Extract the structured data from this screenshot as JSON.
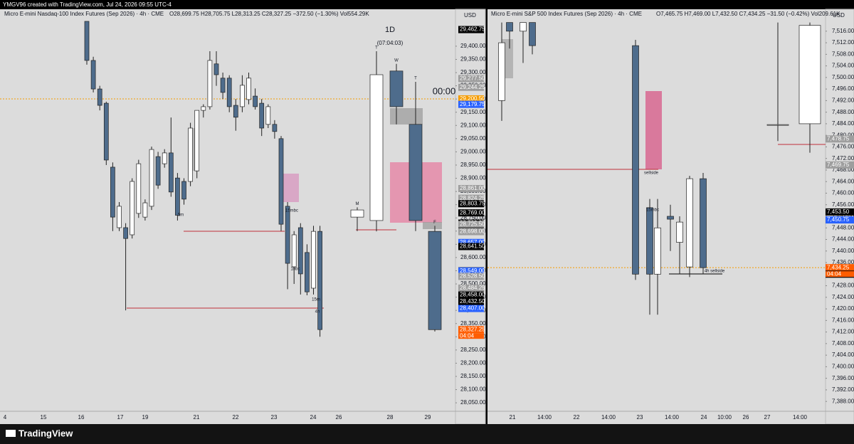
{
  "header": {
    "credit": "YMGV96 created with TradingView.com, Jul 24, 2026 09:55 UTC-4"
  },
  "footer": {
    "brand": "TradingView"
  },
  "chart_data": [
    {
      "type": "candlestick",
      "title": "Micro E-mini Nasdaq-100 Index Futures (Sep 2026) · 4h · CME",
      "ohlc": "O28,699.75 H28,705.75 L28,313.25 C28,327.25 −372.50 (−1.30%) Vol554.29K",
      "currency": "USD",
      "ylim": [
        28018,
        29494
      ],
      "yticks": [
        {
          "value": 28050,
          "label": "28,050.00"
        },
        {
          "value": 28100,
          "label": "28,100.00"
        },
        {
          "value": 28150,
          "label": "28,150.00"
        },
        {
          "value": 28200,
          "label": "28,200.00"
        },
        {
          "value": 28250,
          "label": "28,250.00"
        },
        {
          "value": 28300,
          "label": "28,300.00"
        },
        {
          "value": 28350,
          "label": "28,350.00"
        },
        {
          "value": 28400,
          "label": "28,400.00"
        },
        {
          "value": 28450,
          "label": "28,450.00"
        },
        {
          "value": 28500,
          "label": "28,500.00"
        },
        {
          "value": 28550,
          "label": "28,550.00"
        },
        {
          "value": 28600,
          "label": "28,600.00"
        },
        {
          "value": 28650,
          "label": "28,650.00"
        },
        {
          "value": 28700,
          "label": "28,700.00"
        },
        {
          "value": 28750,
          "label": "28,750.00"
        },
        {
          "value": 28800,
          "label": "28,800.00"
        },
        {
          "value": 28850,
          "label": "28,850.00"
        },
        {
          "value": 28900,
          "label": "28,900.00"
        },
        {
          "value": 28950,
          "label": "28,950.00"
        },
        {
          "value": 29000,
          "label": "29,000.00"
        },
        {
          "value": 29050,
          "label": "29,050.00"
        },
        {
          "value": 29100,
          "label": "29,100.00"
        },
        {
          "value": 29150,
          "label": "29,150.00"
        },
        {
          "value": 29200,
          "label": "29,200.00"
        },
        {
          "value": 29250,
          "label": "29,250.00"
        },
        {
          "value": 29300,
          "label": "29,300.00"
        },
        {
          "value": 29350,
          "label": "29,350.00"
        },
        {
          "value": 29400,
          "label": "29,400.00"
        }
      ],
      "x_labels": [
        "4",
        "15",
        "16",
        "17",
        "19",
        "21",
        "22",
        "23",
        "24",
        "26",
        "28",
        "29"
      ],
      "candles": {
        "open": [
          29494,
          29346,
          29238,
          29184,
          28942,
          28713,
          28713,
          28686,
          28767,
          28753,
          28794,
          28982,
          28955,
          28996,
          28901,
          28888,
          28888,
          28928,
          29157,
          29171,
          29333,
          29279,
          29279,
          29176,
          29171,
          29198,
          29211,
          29184,
          29104,
          29104,
          29050,
          28794,
          28565,
          28713,
          28619,
          28484,
          28699
        ],
        "high": [
          29494,
          29360,
          29250,
          29190,
          28960,
          28810,
          28730,
          28900,
          28970,
          28820,
          29020,
          29000,
          29010,
          29130,
          28920,
          28900,
          29110,
          29157,
          29180,
          29381,
          29381,
          29300,
          29290,
          29200,
          29290,
          29300,
          29240,
          29200,
          29180,
          29120,
          29060,
          28810,
          28700,
          28730,
          28650,
          28720,
          28720
        ],
        "low": [
          29330,
          29225,
          29157,
          28950,
          28700,
          28700,
          28400,
          28672,
          28750,
          28740,
          28780,
          28860,
          28940,
          28830,
          28740,
          28800,
          28870,
          28900,
          29130,
          29160,
          29250,
          29200,
          29150,
          29080,
          29150,
          29180,
          29160,
          29060,
          29090,
          29050,
          28700,
          28480,
          28500,
          28460,
          28457,
          28460,
          28300
        ],
        "close": [
          29346,
          29238,
          29176,
          28969,
          28753,
          28794,
          28672,
          28888,
          28955,
          28807,
          29009,
          28874,
          28996,
          28848,
          28760,
          28821,
          29090,
          29157,
          29171,
          29346,
          29292,
          29225,
          29171,
          29131,
          29252,
          29279,
          29171,
          29090,
          29171,
          29077,
          28726,
          28578,
          28686,
          28538,
          28470,
          28699,
          28327.25
        ]
      },
      "daily": {
        "label": "1D",
        "countdown": "(07:04:03)",
        "clock": "00:00",
        "days": [
          "M",
          "T",
          "W",
          "T",
          "F"
        ],
        "open": [
          28753,
          28740,
          29306,
          29104,
          28699
        ],
        "high": [
          28790,
          29381,
          29333,
          29265,
          28720
        ],
        "low": [
          28700,
          28699,
          29104,
          28700,
          28320
        ],
        "close": [
          28780,
          29292,
          29171,
          28740,
          28327
        ]
      },
      "price_tags": [
        {
          "value": 29463,
          "label": "29,463.00",
          "color": "#000000"
        },
        {
          "value": 29462.75,
          "label": "29,462.75",
          "color": "#000000"
        },
        {
          "value": 29277.5,
          "label": "29,277.50",
          "color": "#9e9e9e"
        },
        {
          "value": 29244.25,
          "label": "29,244.25",
          "color": "#9e9e9e"
        },
        {
          "value": 29200.5,
          "label": "29,200.50",
          "color": "#f59c00"
        },
        {
          "value": 29179.75,
          "label": "29,179.75",
          "color": "#2962ff"
        },
        {
          "value": 28861,
          "label": "28,861.00",
          "color": "#9e9e9e"
        },
        {
          "value": 28824.25,
          "label": "28,824.25",
          "color": "#9e9e9e"
        },
        {
          "value": 28803.75,
          "label": "28,803.75",
          "color": "#000000"
        },
        {
          "value": 28769,
          "label": "28,769.00",
          "color": "#000000"
        },
        {
          "value": 28730.25,
          "label": "28,730.25",
          "color": "#000000"
        },
        {
          "value": 28725.5,
          "label": "28,725.50",
          "color": "#9e9e9e"
        },
        {
          "value": 28700.25,
          "label": "28,700.25",
          "color": "#000000"
        },
        {
          "value": 28698,
          "label": "28,698.00",
          "color": "#9e9e9e"
        },
        {
          "value": 28657,
          "label": "28,657.00",
          "color": "#2962ff"
        },
        {
          "value": 28641.5,
          "label": "28,641.50",
          "color": "#000000"
        },
        {
          "value": 28549.75,
          "label": "28,549.75",
          "color": "#000000"
        },
        {
          "value": 28549,
          "label": "28,549.00",
          "color": "#2962ff"
        },
        {
          "value": 28528.5,
          "label": "28,528.50",
          "color": "#9e9e9e"
        },
        {
          "value": 28484.25,
          "label": "28,484.25",
          "color": "#9e9e9e"
        },
        {
          "value": 28458,
          "label": "28,458.00",
          "color": "#000000"
        },
        {
          "value": 28432.5,
          "label": "28,432.50",
          "color": "#000000"
        },
        {
          "value": 28407,
          "label": "28,407.00",
          "color": "#2962ff"
        },
        {
          "value": 28327.25,
          "label": "28,327.25",
          "color": "#ff5d00"
        }
      ],
      "timer": "04:04",
      "annotations": [
        "15mbc",
        "1hbc",
        "15m",
        "4h",
        "5m"
      ]
    },
    {
      "type": "candlestick",
      "title": "Micro E-mini S&P 500 Index Futures (Sep 2026) · 4h · CME",
      "ohlc": "O7,465.75 H7,469.00 L7,432.50 C7,434.25 −31.50 (−0.42%) Vol209.61K",
      "currency": "USD",
      "ylim": [
        7384.6,
        7519.4
      ],
      "yticks": [
        {
          "value": 7388,
          "label": "7,388.00"
        },
        {
          "value": 7392,
          "label": "7,392.00"
        },
        {
          "value": 7396,
          "label": "7,396.00"
        },
        {
          "value": 7400,
          "label": "7,400.00"
        },
        {
          "value": 7404,
          "label": "7,404.00"
        },
        {
          "value": 7408,
          "label": "7,408.00"
        },
        {
          "value": 7412,
          "label": "7,412.00"
        },
        {
          "value": 7416,
          "label": "7,416.00"
        },
        {
          "value": 7420,
          "label": "7,420.00"
        },
        {
          "value": 7424,
          "label": "7,424.00"
        },
        {
          "value": 7428,
          "label": "7,428.00"
        },
        {
          "value": 7432,
          "label": "7,432.00"
        },
        {
          "value": 7436,
          "label": "7,436.00"
        },
        {
          "value": 7440,
          "label": "7,440.00"
        },
        {
          "value": 7444,
          "label": "7,444.00"
        },
        {
          "value": 7448,
          "label": "7,448.00"
        },
        {
          "value": 7452,
          "label": "7,452.00"
        },
        {
          "value": 7456,
          "label": "7,456.00"
        },
        {
          "value": 7460,
          "label": "7,460.00"
        },
        {
          "value": 7464,
          "label": "7,464.00"
        },
        {
          "value": 7468,
          "label": "7,468.00"
        },
        {
          "value": 7472,
          "label": "7,472.00"
        },
        {
          "value": 7476,
          "label": "7,476.00"
        },
        {
          "value": 7480,
          "label": "7,480.00"
        },
        {
          "value": 7484,
          "label": "7,484.00"
        },
        {
          "value": 7488,
          "label": "7,488.00"
        },
        {
          "value": 7492,
          "label": "7,492.00"
        },
        {
          "value": 7496,
          "label": "7,496.00"
        },
        {
          "value": 7500,
          "label": "7,500.00"
        },
        {
          "value": 7504,
          "label": "7,504.00"
        },
        {
          "value": 7508,
          "label": "7,508.00"
        },
        {
          "value": 7512,
          "label": "7,512.00"
        },
        {
          "value": 7516,
          "label": "7,516.00"
        }
      ],
      "x_labels": [
        "21",
        "14:00",
        "22",
        "14:00",
        "23",
        "14:00",
        "24",
        "10:00",
        "26",
        "27",
        "14:00"
      ],
      "candles": {
        "open": [
          7492,
          7519,
          7516,
          7519,
          7511,
          7455,
          7432,
          7452,
          7443,
          7434.5,
          7465
        ],
        "high": [
          7519,
          7519,
          7519,
          7519,
          7513,
          7458,
          7458,
          7456,
          7452,
          7466,
          7467
        ],
        "low": [
          7485,
          7510,
          7505,
          7508,
          7430,
          7418,
          7418,
          7440,
          7432,
          7431,
          7432
        ],
        "close": [
          7512,
          7516,
          7519,
          7511,
          7432,
          7432,
          7448,
          7451,
          7450,
          7465,
          7434.25
        ]
      },
      "daily": {
        "open": [
          7483.7,
          7484
        ],
        "high": [
          7519,
          7519
        ],
        "low": [
          7478,
          7474
        ],
        "close": [
          7483.7,
          7518
        ]
      },
      "price_tags": [
        {
          "value": 7478.75,
          "label": "7,478.75",
          "color": "#9e9e9e"
        },
        {
          "value": 7469.75,
          "label": "7,469.75",
          "color": "#9e9e9e"
        },
        {
          "value": 7453.5,
          "label": "7,453.50",
          "color": "#000000"
        },
        {
          "value": 7450.75,
          "label": "7,450.75",
          "color": "#2962ff"
        },
        {
          "value": 7434.25,
          "label": "7,434.25",
          "color": "#ff5d00"
        },
        {
          "value": 7432,
          "label": "7,432.00",
          "color": "#000000"
        }
      ],
      "timer": "04:04",
      "annotations": [
        "15mbc",
        "sellside",
        "4h sellside"
      ]
    }
  ]
}
